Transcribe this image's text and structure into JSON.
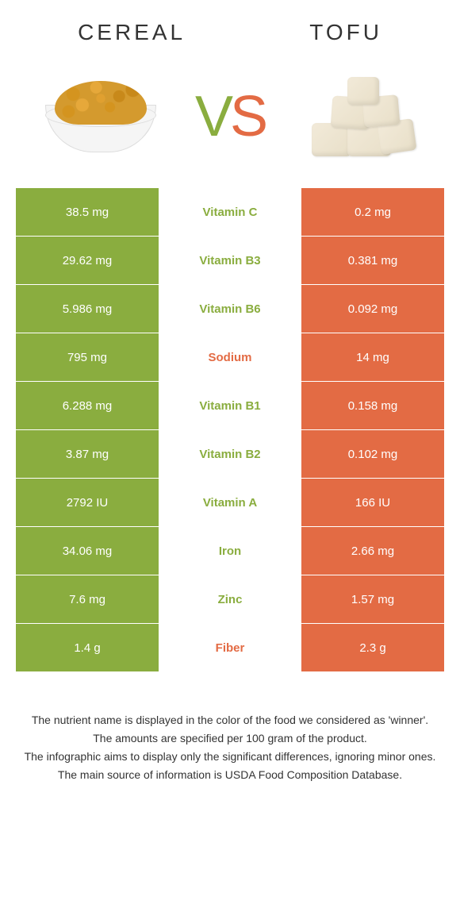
{
  "colors": {
    "green": "#8aad3f",
    "orange": "#e36b44",
    "white": "#ffffff"
  },
  "header": {
    "left": "CEREAL",
    "right": "TOFU",
    "vs_v": "V",
    "vs_s": "S"
  },
  "rows": [
    {
      "left": "38.5 mg",
      "label": "Vitamin C",
      "right": "0.2 mg",
      "winner": "left"
    },
    {
      "left": "29.62 mg",
      "label": "Vitamin B3",
      "right": "0.381 mg",
      "winner": "left"
    },
    {
      "left": "5.986 mg",
      "label": "Vitamin B6",
      "right": "0.092 mg",
      "winner": "left"
    },
    {
      "left": "795 mg",
      "label": "Sodium",
      "right": "14 mg",
      "winner": "right"
    },
    {
      "left": "6.288 mg",
      "label": "Vitamin B1",
      "right": "0.158 mg",
      "winner": "left"
    },
    {
      "left": "3.87 mg",
      "label": "Vitamin B2",
      "right": "0.102 mg",
      "winner": "left"
    },
    {
      "left": "2792 IU",
      "label": "Vitamin A",
      "right": "166 IU",
      "winner": "left"
    },
    {
      "left": "34.06 mg",
      "label": "Iron",
      "right": "2.66 mg",
      "winner": "left"
    },
    {
      "left": "7.6 mg",
      "label": "Zinc",
      "right": "1.57 mg",
      "winner": "left"
    },
    {
      "left": "1.4 g",
      "label": "Fiber",
      "right": "2.3 g",
      "winner": "right"
    }
  ],
  "footer": {
    "line1": "The nutrient name is displayed in the color of the food we considered as 'winner'.",
    "line2": "The amounts are specified per 100 gram of the product.",
    "line3": "The infographic aims to display only the significant differences, ignoring minor ones.",
    "line4": "The main source of information is USDA Food Composition Database."
  }
}
